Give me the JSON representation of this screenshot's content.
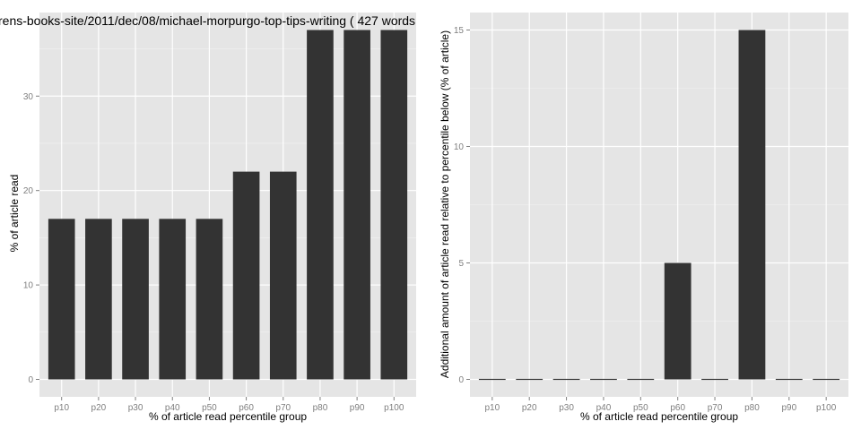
{
  "chart_data": [
    {
      "type": "bar",
      "title": "rens-books-site/2011/dec/08/michael-morpurgo-top-tips-writing ( 427 words",
      "xlabel": "% of article read percentile group",
      "ylabel": "% of article read",
      "categories": [
        "p10",
        "p20",
        "p30",
        "p40",
        "p50",
        "p60",
        "p70",
        "p80",
        "p90",
        "p100"
      ],
      "values": [
        17,
        17,
        17,
        17,
        17,
        22,
        22,
        37,
        37,
        37
      ],
      "ylim": [
        -1.85,
        38.85
      ],
      "yticks": [
        0,
        10,
        20,
        30
      ],
      "grid": true,
      "legend": "none",
      "bar_color": "#333333",
      "panel_bg": "#e5e5e5"
    },
    {
      "type": "bar",
      "title": "",
      "xlabel": "% of article read percentile group",
      "ylabel": "Additional amount of article read relative to percentile below (% of article)",
      "categories": [
        "p10",
        "p20",
        "p30",
        "p40",
        "p50",
        "p60",
        "p70",
        "p80",
        "p90",
        "p100"
      ],
      "values": [
        0,
        0,
        0,
        0,
        0,
        5,
        0,
        15,
        0,
        0
      ],
      "ylim": [
        -0.75,
        15.75
      ],
      "yticks": [
        0,
        5,
        10,
        15
      ],
      "grid": true,
      "legend": "none",
      "bar_color": "#333333",
      "panel_bg": "#e5e5e5"
    }
  ]
}
